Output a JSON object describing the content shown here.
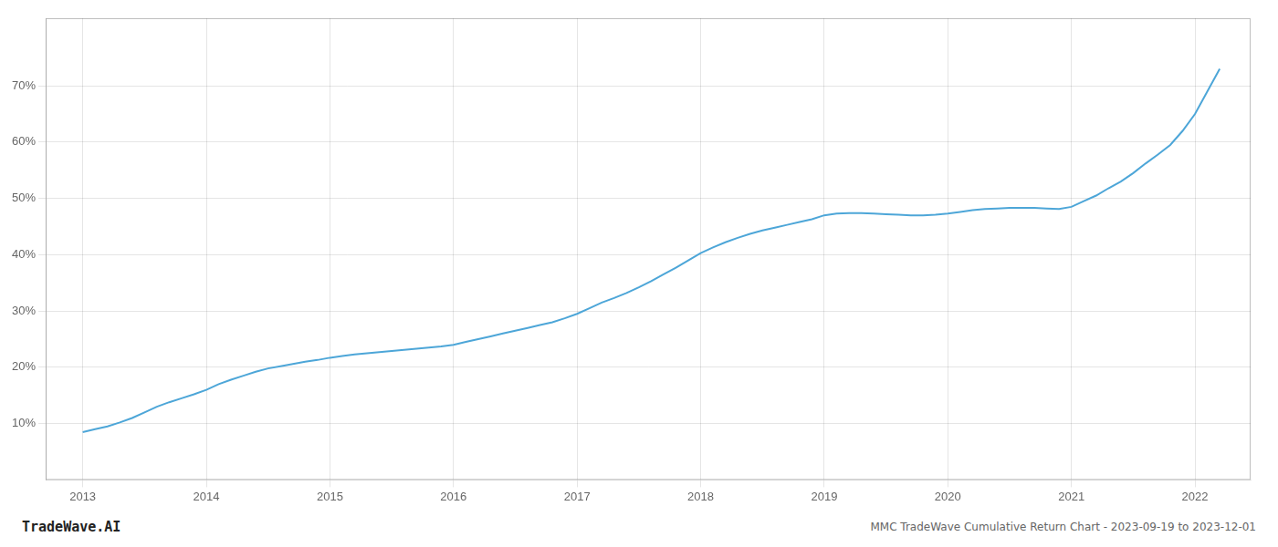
{
  "chart_data": {
    "type": "line",
    "annotations": [
      {
        "text": "TradeWave.AI"
      },
      {
        "text": "MMC TradeWave Cumulative Return Chart - 2023-09-19 to 2023-12-01"
      }
    ],
    "color": "#4da6d8",
    "x": [
      2013.0,
      2013.1,
      2013.2,
      2013.3,
      2013.4,
      2013.5,
      2013.6,
      2013.7,
      2013.8,
      2013.9,
      2014.0,
      2014.1,
      2014.2,
      2014.3,
      2014.4,
      2014.5,
      2014.6,
      2014.7,
      2014.8,
      2014.9,
      2015.0,
      2015.1,
      2015.2,
      2015.3,
      2015.4,
      2015.5,
      2015.6,
      2015.7,
      2015.8,
      2015.9,
      2016.0,
      2016.1,
      2016.2,
      2016.3,
      2016.4,
      2016.5,
      2016.6,
      2016.7,
      2016.8,
      2016.9,
      2017.0,
      2017.1,
      2017.2,
      2017.3,
      2017.4,
      2017.5,
      2017.6,
      2017.7,
      2017.8,
      2017.9,
      2018.0,
      2018.1,
      2018.2,
      2018.3,
      2018.4,
      2018.5,
      2018.6,
      2018.7,
      2018.8,
      2018.9,
      2019.0,
      2019.1,
      2019.2,
      2019.3,
      2019.4,
      2019.5,
      2019.6,
      2019.7,
      2019.8,
      2019.9,
      2020.0,
      2020.1,
      2020.2,
      2020.3,
      2020.4,
      2020.5,
      2020.6,
      2020.7,
      2020.8,
      2020.9,
      2021.0,
      2021.1,
      2021.2,
      2021.3,
      2021.4,
      2021.5,
      2021.6,
      2021.7,
      2021.8,
      2021.9,
      2022.0,
      2022.1,
      2022.2
    ],
    "values": [
      8.5,
      9.0,
      9.5,
      10.2,
      11.0,
      12.0,
      13.0,
      13.8,
      14.5,
      15.2,
      16.0,
      17.0,
      17.8,
      18.5,
      19.2,
      19.8,
      20.2,
      20.6,
      21.0,
      21.3,
      21.7,
      22.0,
      22.3,
      22.5,
      22.7,
      22.9,
      23.1,
      23.3,
      23.5,
      23.7,
      24.0,
      24.5,
      25.0,
      25.5,
      26.0,
      26.5,
      27.0,
      27.5,
      28.0,
      28.7,
      29.5,
      30.5,
      31.5,
      32.3,
      33.2,
      34.2,
      35.3,
      36.5,
      37.7,
      39.0,
      40.3,
      41.3,
      42.2,
      43.0,
      43.7,
      44.3,
      44.8,
      45.3,
      45.8,
      46.3,
      47.0,
      47.3,
      47.4,
      47.4,
      47.3,
      47.2,
      47.1,
      47.0,
      47.0,
      47.1,
      47.3,
      47.6,
      47.9,
      48.1,
      48.2,
      48.3,
      48.3,
      48.3,
      48.2,
      48.1,
      48.5,
      49.5,
      50.5,
      51.8,
      53.0,
      54.5,
      56.2,
      57.8,
      59.5,
      62.0,
      65.0,
      69.0,
      73.0
    ],
    "xlim": [
      2012.7,
      2022.45
    ],
    "ylim": [
      0,
      82
    ],
    "xticks": [
      2013,
      2014,
      2015,
      2016,
      2017,
      2018,
      2019,
      2020,
      2021,
      2022
    ],
    "yticks": [
      {
        "value": 10,
        "label": "10%"
      },
      {
        "value": 20,
        "label": "20%"
      },
      {
        "value": 30,
        "label": "30%"
      },
      {
        "value": 40,
        "label": "40%"
      },
      {
        "value": 50,
        "label": "50%"
      },
      {
        "value": 60,
        "label": "60%"
      },
      {
        "value": 70,
        "label": "70%"
      }
    ],
    "grid": true
  }
}
